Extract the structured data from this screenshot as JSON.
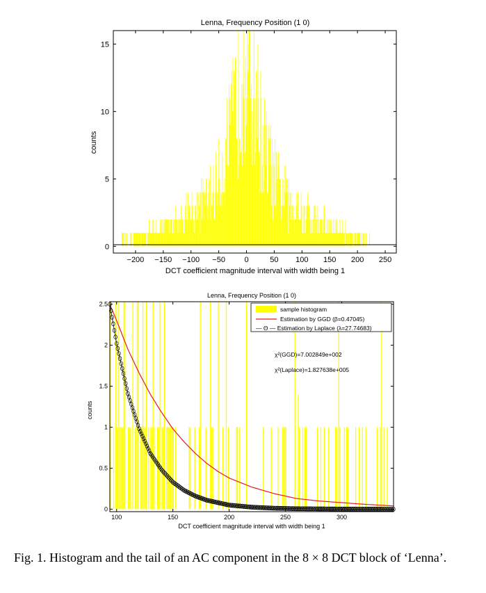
{
  "chart_data": [
    {
      "type": "bar",
      "title": "Lenna,  Frequency Position (1 0)",
      "xlabel": "DCT coefficient magnitude interval with width being 1",
      "ylabel": "counts",
      "xlim": [
        -240,
        270
      ],
      "ylim": [
        -0.5,
        16
      ],
      "xticks": [
        -200,
        -150,
        -100,
        -50,
        0,
        50,
        100,
        150,
        200,
        250
      ],
      "xtick_labels": [
        "−200",
        "−150",
        "−100",
        "−50",
        "0",
        "50",
        "100",
        "150",
        "200",
        "250"
      ],
      "yticks": [
        0,
        5,
        10,
        15
      ],
      "ytick_labels": [
        "0",
        "5",
        "10",
        "15"
      ],
      "bar_color": "#ffff00",
      "envelope": {
        "x": [
          -240,
          -220,
          -200,
          -180,
          -160,
          -140,
          -120,
          -100,
          -80,
          -60,
          -50,
          -40,
          -30,
          -20,
          -15,
          -10,
          0,
          10,
          15,
          20,
          30,
          40,
          50,
          60,
          80,
          100,
          120,
          140,
          160,
          180,
          200,
          220,
          240,
          270
        ],
        "y": [
          0.1,
          0.5,
          0.8,
          1.1,
          1.4,
          1.8,
          2.2,
          2.7,
          3.5,
          4.8,
          5.8,
          7.2,
          9.0,
          11.5,
          13.5,
          15.5,
          16.2,
          15.5,
          13.5,
          11.5,
          9.0,
          7.2,
          5.8,
          4.8,
          3.5,
          2.7,
          2.2,
          1.8,
          1.4,
          1.1,
          0.8,
          0.5,
          0.2,
          0.1
        ]
      }
    },
    {
      "type": "bar+line",
      "title": "Lenna,  Frequency Position (1 0)",
      "xlabel": "DCT coefficient magnitude interval with width being 1",
      "ylabel": "counts",
      "xlim": [
        94,
        346
      ],
      "ylim": [
        -0.03,
        2.53
      ],
      "xticks": [
        100,
        150,
        200,
        250,
        300
      ],
      "xtick_labels": [
        "100",
        "150",
        "200",
        "250",
        "300"
      ],
      "yticks": [
        0,
        0.5,
        1,
        1.5,
        2,
        2.5
      ],
      "ytick_labels": [
        "0",
        "0.5",
        "1",
        "1.5",
        "2",
        "2.5"
      ],
      "legend": [
        "sample histogram",
        "Estimation by GGD (β=0.47045)",
        "— Θ — Estimation by Laplace (λ=27.74683)"
      ],
      "legend_position": "top-right",
      "annotations": [
        "χ²(GGD)=7.002849e+002",
        "χ²(Laplace)=1.827638e+005"
      ],
      "ggd_curve": {
        "x": [
          94,
          100,
          110,
          120,
          130,
          140,
          150,
          160,
          170,
          180,
          190,
          200,
          220,
          240,
          260,
          280,
          300,
          320,
          346
        ],
        "y": [
          2.5,
          2.3,
          1.95,
          1.66,
          1.4,
          1.18,
          0.98,
          0.82,
          0.68,
          0.56,
          0.46,
          0.38,
          0.27,
          0.19,
          0.13,
          0.1,
          0.08,
          0.06,
          0.04
        ],
        "color": "#e41a1c"
      },
      "laplace_curve": {
        "x": [
          94,
          100,
          110,
          120,
          130,
          140,
          150,
          160,
          170,
          180,
          190,
          200,
          220,
          240,
          260,
          300,
          346
        ],
        "y": [
          2.5,
          2.02,
          1.41,
          0.98,
          0.68,
          0.48,
          0.33,
          0.23,
          0.16,
          0.11,
          0.08,
          0.05,
          0.025,
          0.012,
          0.006,
          0.002,
          0.0
        ],
        "color": "#000000"
      },
      "bar_color": "#ffff00"
    }
  ],
  "caption": "Fig. 1.   Histogram and the tail of an AC component in the 8 × 8 DCT block of ‘Lenna’."
}
